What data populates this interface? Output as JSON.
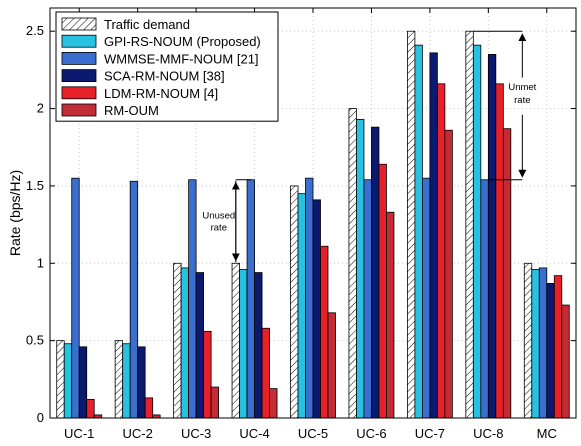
{
  "chart_data": {
    "type": "bar",
    "categories": [
      "UC-1",
      "UC-2",
      "UC-3",
      "UC-4",
      "UC-5",
      "UC-6",
      "UC-7",
      "UC-8",
      "MC"
    ],
    "ylabel": "Rate (bps/Hz)",
    "xlabel": "",
    "ylim": [
      0,
      2.65
    ],
    "yticks": [
      0,
      0.5,
      1,
      1.5,
      2,
      2.5
    ],
    "ytick_labels": [
      "0",
      "0.5",
      "1",
      "1.5",
      "2",
      "2.5"
    ],
    "grid": true,
    "legend_position": "top-left",
    "series": [
      {
        "name": "Traffic demand",
        "color": "#ffffff",
        "pattern": "hatch",
        "values": [
          0.5,
          0.5,
          1.0,
          1.0,
          1.5,
          2.0,
          2.5,
          2.5,
          1.0
        ]
      },
      {
        "name": "GPI-RS-NOUM (Proposed)",
        "color": "#27c2e0",
        "values": [
          0.48,
          0.48,
          0.97,
          0.96,
          1.45,
          1.93,
          2.41,
          2.41,
          0.96
        ]
      },
      {
        "name": "WMMSE-MMF-NOUM [21]",
        "color": "#3a6fcf",
        "values": [
          1.55,
          1.53,
          1.54,
          1.54,
          1.55,
          1.54,
          1.55,
          1.54,
          0.97
        ]
      },
      {
        "name": "SCA-RM-NOUM [38]",
        "color": "#0b1a6e",
        "values": [
          0.46,
          0.46,
          0.94,
          0.94,
          1.41,
          1.88,
          2.36,
          2.35,
          0.87
        ]
      },
      {
        "name": "LDM-RM-NOUM [4]",
        "color": "#e8202a",
        "values": [
          0.12,
          0.13,
          0.56,
          0.58,
          1.11,
          1.64,
          2.16,
          2.16,
          0.92
        ]
      },
      {
        "name": "RM-OUM",
        "color": "#c42c35",
        "values": [
          0.02,
          0.02,
          0.2,
          0.19,
          0.68,
          1.33,
          1.86,
          1.87,
          0.73
        ]
      }
    ],
    "annotations": [
      {
        "text_lines": [
          "Unused",
          "rate"
        ],
        "category": "UC-4"
      },
      {
        "text_lines": [
          "Unmet",
          "rate"
        ],
        "category": "UC-8"
      }
    ]
  }
}
